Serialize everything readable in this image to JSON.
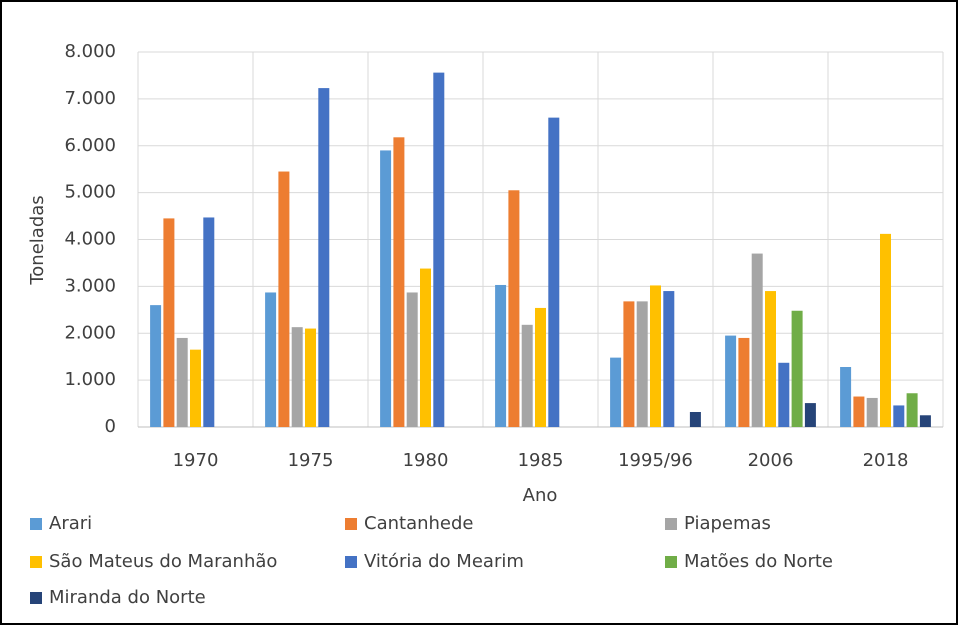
{
  "chart_data": {
    "type": "bar",
    "y_label": "Toneladas",
    "x_label": "Ano",
    "categories": [
      "1970",
      "1975",
      "1980",
      "1985",
      "1995/96",
      "2006",
      "2018"
    ],
    "series": [
      {
        "name": "Arari",
        "color": "#5b9bd5",
        "values": [
          2600,
          2870,
          5900,
          3030,
          1480,
          1950,
          1280
        ]
      },
      {
        "name": "Cantanhede",
        "color": "#ed7d31",
        "values": [
          4450,
          5450,
          6180,
          5050,
          2680,
          1900,
          650
        ]
      },
      {
        "name": "Piapemas",
        "color": "#a5a5a5",
        "values": [
          1900,
          2130,
          2870,
          2180,
          2680,
          3700,
          620
        ]
      },
      {
        "name": "São Mateus do Maranhão",
        "color": "#ffc000",
        "values": [
          1650,
          2100,
          3380,
          2540,
          3020,
          2900,
          4120
        ]
      },
      {
        "name": "Vitória do Mearim",
        "color": "#4472c4",
        "values": [
          4470,
          7230,
          7560,
          6600,
          2900,
          1370,
          460
        ]
      },
      {
        "name": "Matões do Norte",
        "color": "#70ad47",
        "values": [
          null,
          null,
          null,
          null,
          null,
          2480,
          720
        ]
      },
      {
        "name": "Miranda do Norte",
        "color": "#264478",
        "values": [
          null,
          null,
          null,
          null,
          320,
          510,
          250
        ]
      }
    ],
    "ylim": [
      0,
      8000
    ],
    "yticks": [
      0,
      {
        "value": 1000,
        "label": "1.000"
      },
      {
        "value": 2000,
        "label": "2.000"
      },
      {
        "value": 3000,
        "label": "3.000"
      },
      {
        "value": 4000,
        "label": "4.000"
      },
      {
        "value": 5000,
        "label": "5.000"
      },
      {
        "value": 6000,
        "label": "6.000"
      },
      {
        "value": 7000,
        "label": "7.000"
      },
      {
        "value": 8000,
        "label": "8.000"
      }
    ],
    "grid": true,
    "legend": "bottom"
  }
}
